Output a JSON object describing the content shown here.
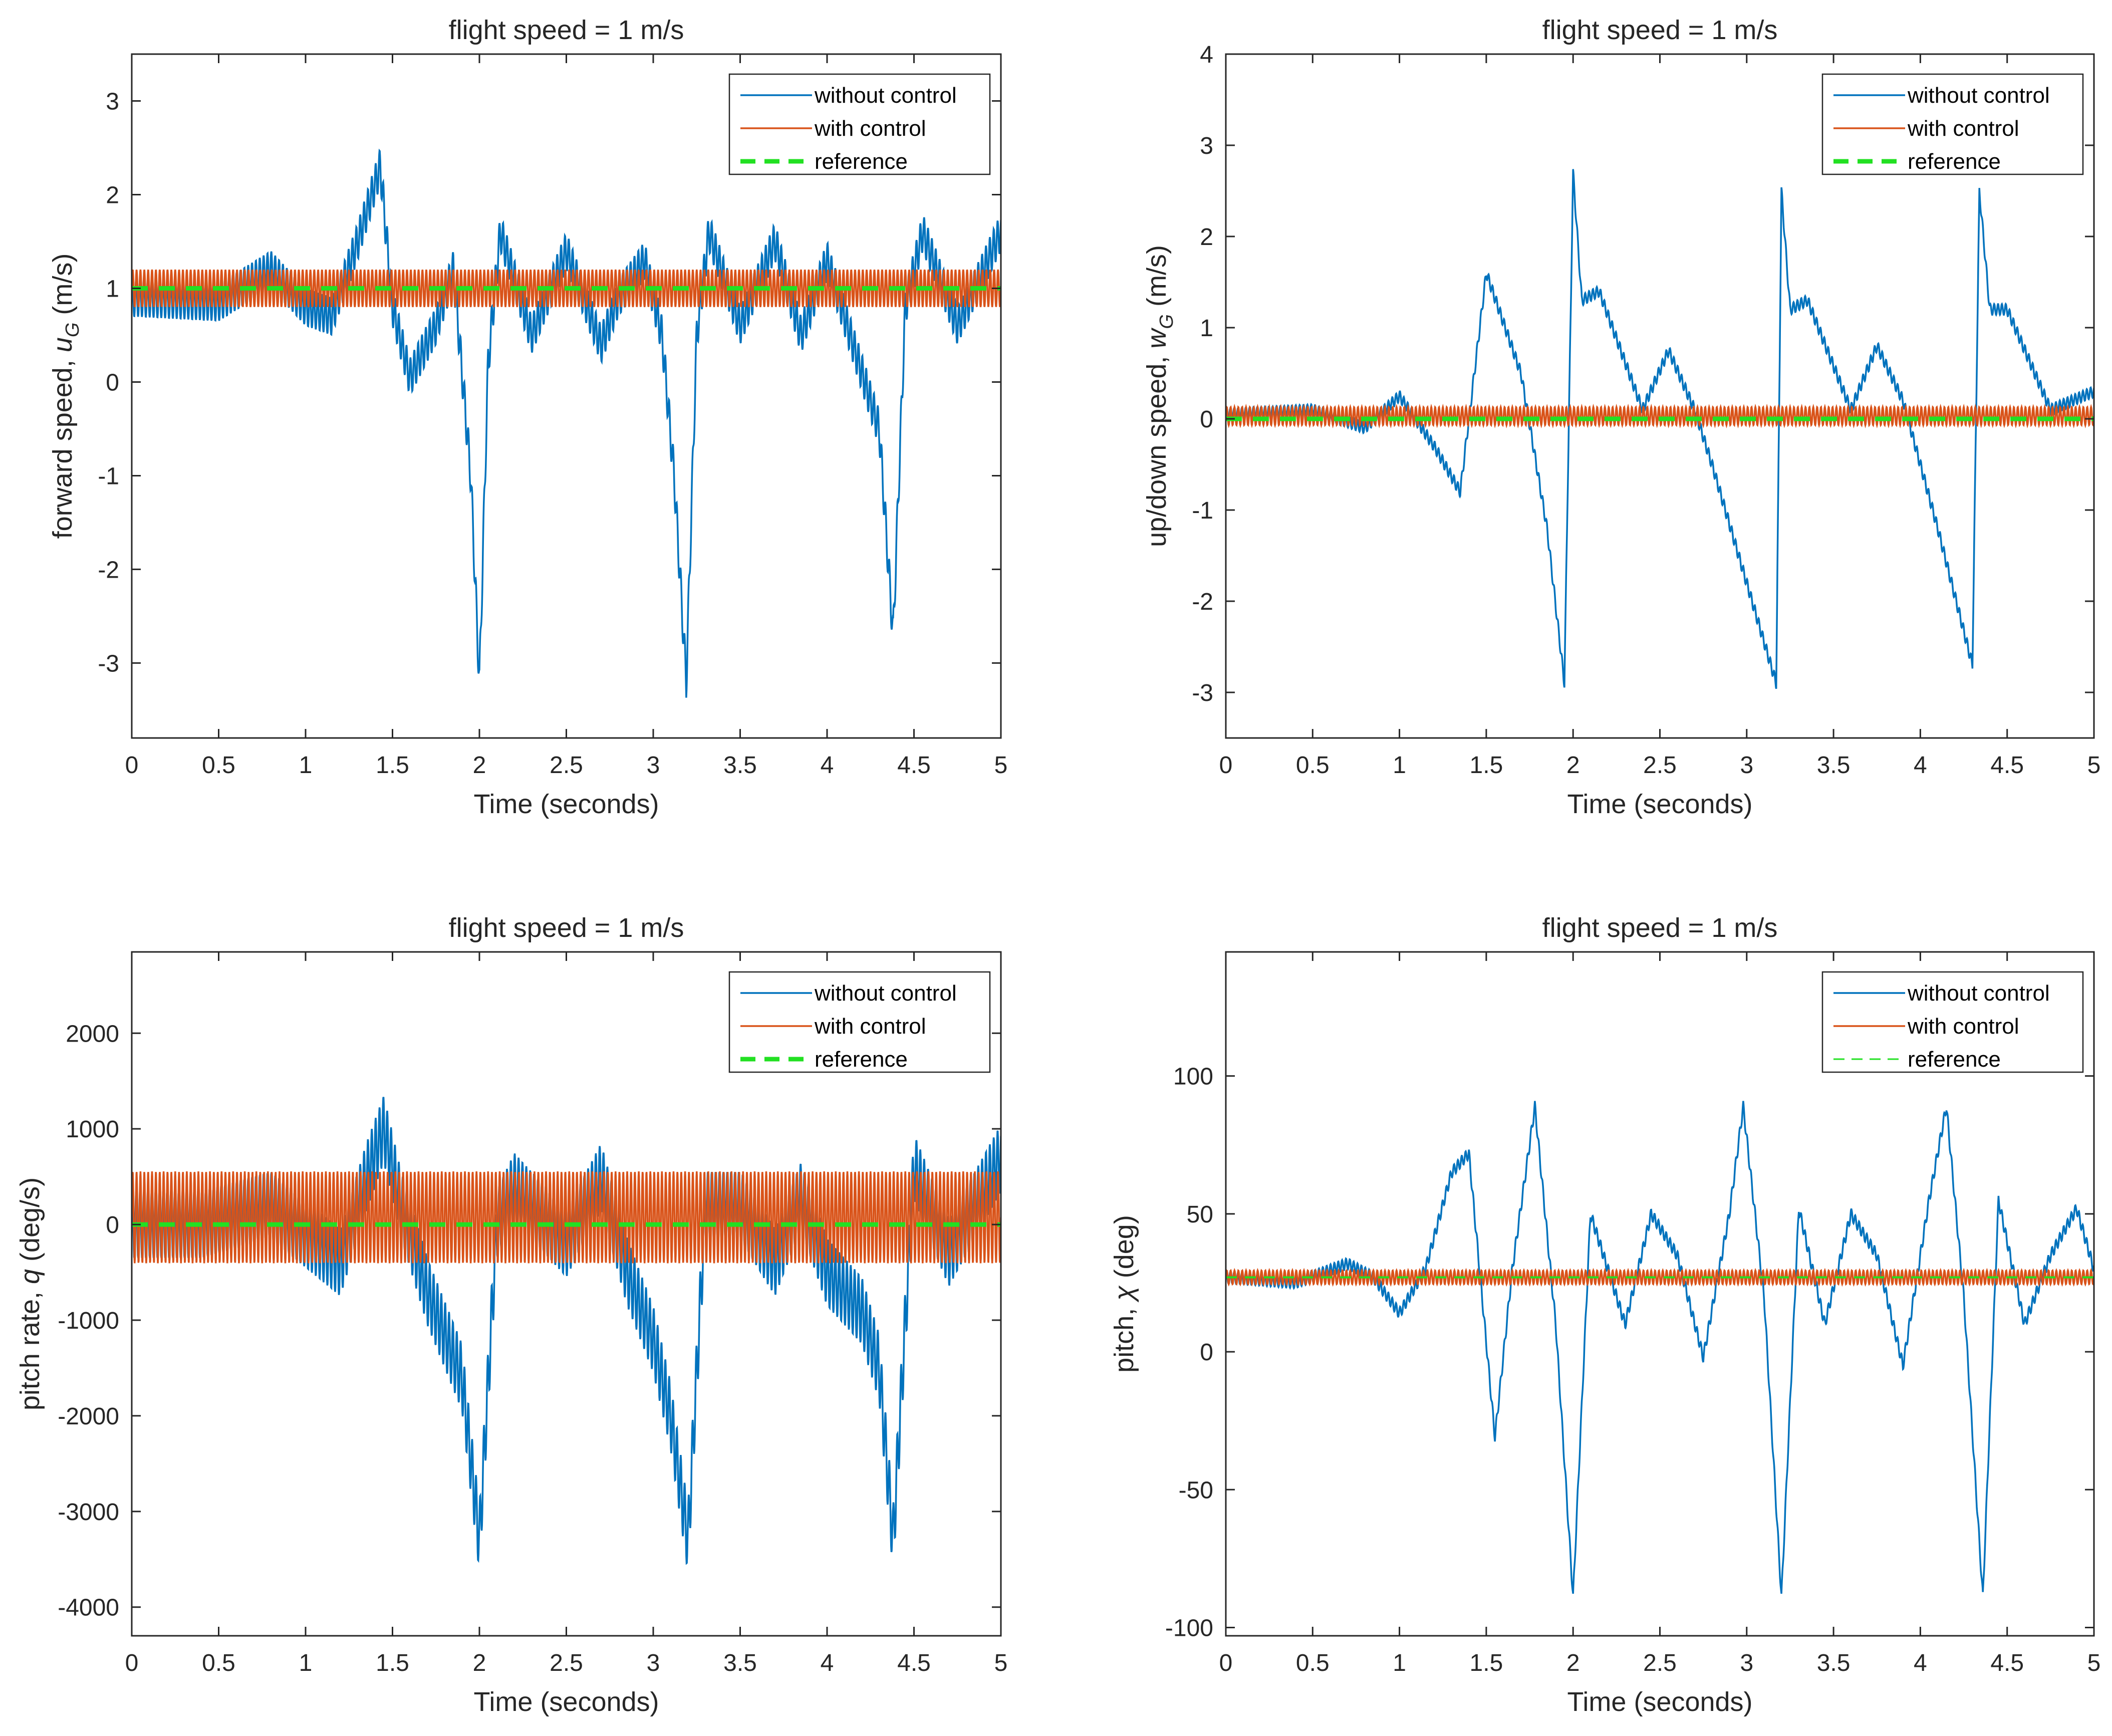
{
  "figure": {
    "colors": {
      "without_control": "#0072BD",
      "with_control": "#D95319",
      "reference": "#22E022",
      "axis": "#262626"
    }
  },
  "chart_data": [
    {
      "type": "line",
      "title": "flight speed = 1 m/s",
      "xlabel": "Time (seconds)",
      "ylabel": {
        "text": "forward speed, ",
        "symbol": "u",
        "subscript": "G",
        "unit": " (m/s)"
      },
      "xlim": [
        0,
        5
      ],
      "ylim": [
        -3.8,
        3.5
      ],
      "xticks": [
        0,
        0.5,
        1,
        1.5,
        2,
        2.5,
        3,
        3.5,
        4,
        4.5,
        5
      ],
      "xtick_labels": [
        "0",
        "0.5",
        "1",
        "1.5",
        "2",
        "2.5",
        "3",
        "3.5",
        "4",
        "4.5",
        "5"
      ],
      "yticks": [
        3,
        2,
        1,
        0,
        -1,
        -2,
        -3
      ],
      "ytick_labels": [
        "3",
        "2",
        "1",
        "0",
        "-1",
        "-2",
        "-3"
      ],
      "legend": {
        "location": "top-right",
        "entries": [
          "without control",
          "with control",
          "reference"
        ],
        "reference_style": "bold-dash"
      },
      "series": [
        {
          "name": "without control",
          "x": [
            0,
            0.5,
            0.8,
            1.0,
            1.15,
            1.3,
            1.43,
            1.5,
            1.6,
            1.75,
            1.85,
            1.95,
            2.0,
            2.05,
            2.12,
            2.3,
            2.5,
            2.7,
            2.8,
            2.95,
            3.05,
            3.12,
            3.19,
            3.25,
            3.32,
            3.5,
            3.7,
            3.85,
            4.0,
            4.15,
            4.3,
            4.38,
            4.45,
            4.55,
            4.75,
            5.0
          ],
          "y": [
            0.9,
            0.85,
            1.2,
            0.8,
            0.7,
            1.5,
            2.3,
            0.8,
            0.05,
            0.6,
            1.2,
            -1.0,
            -3.2,
            0.2,
            1.6,
            0.5,
            1.4,
            0.4,
            0.9,
            1.3,
            0.5,
            -1.0,
            -3.2,
            0.5,
            1.6,
            0.6,
            1.5,
            0.5,
            1.3,
            0.4,
            -0.5,
            -2.7,
            0.8,
            1.6,
            0.6,
            1.6
          ],
          "ripple_amplitude": 0.2,
          "ripple_frequency_hz": 45
        },
        {
          "name": "with control",
          "constant": 1.0,
          "ripple_amplitude": 0.2,
          "ripple_frequency_hz": 45
        },
        {
          "name": "reference",
          "constant": 1.0
        }
      ]
    },
    {
      "type": "line",
      "title": "flight speed = 1 m/s",
      "xlabel": "Time (seconds)",
      "ylabel": {
        "text": "up/down speed, ",
        "symbol": "w",
        "subscript": "G",
        "unit": " (m/s)"
      },
      "xlim": [
        0,
        5
      ],
      "ylim": [
        -3.5,
        4
      ],
      "xticks": [
        0,
        0.5,
        1,
        1.5,
        2,
        2.5,
        3,
        3.5,
        4,
        4.5,
        5
      ],
      "xtick_labels": [
        "0",
        "0.5",
        "1",
        "1.5",
        "2",
        "2.5",
        "3",
        "3.5",
        "4",
        "4.5",
        "5"
      ],
      "yticks": [
        4,
        3,
        2,
        1,
        0,
        -1,
        -2,
        -3
      ],
      "ytick_labels": [
        "4",
        "3",
        "2",
        "1",
        "0",
        "-1",
        "-2",
        "-3"
      ],
      "legend": {
        "location": "top-right",
        "entries": [
          "without control",
          "with control",
          "reference"
        ],
        "reference_style": "bold-dash"
      },
      "series": [
        {
          "name": "without control",
          "x": [
            0,
            0.5,
            0.8,
            1.0,
            1.2,
            1.35,
            1.5,
            1.7,
            1.85,
            1.95,
            2.0,
            2.05,
            2.15,
            2.4,
            2.55,
            2.7,
            2.8,
            3.0,
            3.17,
            3.2,
            3.25,
            3.35,
            3.6,
            3.75,
            3.9,
            4.1,
            4.3,
            4.34,
            4.4,
            4.5,
            4.75,
            5.0
          ],
          "y": [
            0.05,
            0.1,
            -0.1,
            0.25,
            -0.3,
            -0.8,
            1.6,
            0.5,
            -1.2,
            -2.9,
            2.7,
            1.3,
            1.4,
            0.1,
            0.75,
            0.1,
            -0.5,
            -1.8,
            -2.9,
            2.5,
            1.2,
            1.3,
            0.1,
            0.8,
            0.2,
            -1.2,
            -2.7,
            2.5,
            1.2,
            1.2,
            0.1,
            0.3
          ],
          "ripple_amplitude": 0.06,
          "ripple_frequency_hz": 45
        },
        {
          "name": "with control",
          "constant": 0.03,
          "ripple_amplitude": 0.1,
          "ripple_frequency_hz": 45
        },
        {
          "name": "reference",
          "constant": 0
        }
      ]
    },
    {
      "type": "line",
      "title": "flight speed = 1 m/s",
      "xlabel": "Time (seconds)",
      "ylabel": {
        "text": "pitch rate, ",
        "symbol": "q",
        "subscript": "",
        "unit": " (deg/s)"
      },
      "xlim": [
        0,
        5
      ],
      "ylim": [
        -4300,
        2850
      ],
      "xticks": [
        0,
        0.5,
        1,
        1.5,
        2,
        2.5,
        3,
        3.5,
        4,
        4.5,
        5
      ],
      "xtick_labels": [
        "0",
        "0.5",
        "1",
        "1.5",
        "2",
        "2.5",
        "3",
        "3.5",
        "4",
        "4.5",
        "5"
      ],
      "yticks": [
        2000,
        1000,
        0,
        -1000,
        -2000,
        -3000,
        -4000
      ],
      "ytick_labels": [
        "2000",
        "1000",
        "0",
        "-1000",
        "-2000",
        "-3000",
        "-4000"
      ],
      "legend": {
        "location": "top-right",
        "entries": [
          "without control",
          "with control",
          "reference"
        ],
        "reference_style": "bold-dash"
      },
      "series": [
        {
          "name": "without control",
          "x": [
            0,
            0.4,
            0.8,
            1.0,
            1.2,
            1.35,
            1.45,
            1.55,
            1.7,
            1.9,
            2.0,
            2.1,
            2.2,
            2.5,
            2.7,
            2.85,
            3.0,
            3.1,
            3.2,
            3.3,
            3.5,
            3.7,
            3.85,
            4.0,
            4.2,
            4.3,
            4.38,
            4.5,
            4.7,
            5.0
          ],
          "y": [
            0,
            0,
            200,
            -100,
            -400,
            500,
            1000,
            200,
            -700,
            -1600,
            -3300,
            0,
            400,
            -200,
            500,
            -500,
            -1200,
            -2000,
            -3300,
            200,
            200,
            -400,
            300,
            -500,
            -900,
            -1500,
            -3300,
            600,
            -300,
            700
          ],
          "ripple_amplitude": 350,
          "ripple_frequency_hz": 45
        },
        {
          "name": "with control",
          "constant": 75,
          "ripple_amplitude": 480,
          "ripple_frequency_hz": 45
        },
        {
          "name": "reference",
          "constant": 0
        }
      ]
    },
    {
      "type": "line",
      "title": "flight speed = 1 m/s",
      "xlabel": "Time (seconds)",
      "ylabel": {
        "text": "pitch, ",
        "symbol": "χ",
        "subscript": "",
        "unit": " (deg)"
      },
      "xlim": [
        0,
        5
      ],
      "ylim": [
        -103,
        145
      ],
      "xticks": [
        0,
        0.5,
        1,
        1.5,
        2,
        2.5,
        3,
        3.5,
        4,
        4.5,
        5
      ],
      "xtick_labels": [
        "0",
        "0.5",
        "1",
        "1.5",
        "2",
        "2.5",
        "3",
        "3.5",
        "4",
        "4.5",
        "5"
      ],
      "yticks": [
        100,
        50,
        0,
        -50,
        -100
      ],
      "ytick_labels": [
        "100",
        "50",
        "0",
        "-50",
        "-100"
      ],
      "legend": {
        "location": "top-right",
        "entries": [
          "without control",
          "with control",
          "reference"
        ],
        "reference_style": "thin-dash"
      },
      "series": [
        {
          "name": "without control",
          "x": [
            0,
            0.4,
            0.7,
            0.85,
            1.0,
            1.15,
            1.3,
            1.4,
            1.55,
            1.65,
            1.78,
            1.9,
            2.0,
            2.1,
            2.3,
            2.45,
            2.6,
            2.75,
            2.9,
            2.98,
            3.1,
            3.2,
            3.3,
            3.45,
            3.6,
            3.75,
            3.9,
            4.05,
            4.15,
            4.25,
            4.36,
            4.45,
            4.6,
            4.75,
            4.9,
            5.0
          ],
          "y": [
            27,
            25,
            32,
            27,
            14,
            30,
            65,
            72,
            -31,
            30,
            89,
            10,
            -89,
            50,
            10,
            50,
            35,
            -2,
            50,
            89,
            20,
            -89,
            52,
            10,
            50,
            35,
            -5,
            55,
            89,
            20,
            -89,
            55,
            10,
            35,
            52,
            30
          ],
          "ripple_amplitude": 2,
          "ripple_frequency_hz": 45
        },
        {
          "name": "with control",
          "constant": 27,
          "ripple_amplitude": 2.5,
          "ripple_frequency_hz": 45
        },
        {
          "name": "reference",
          "constant": 27
        }
      ]
    }
  ]
}
